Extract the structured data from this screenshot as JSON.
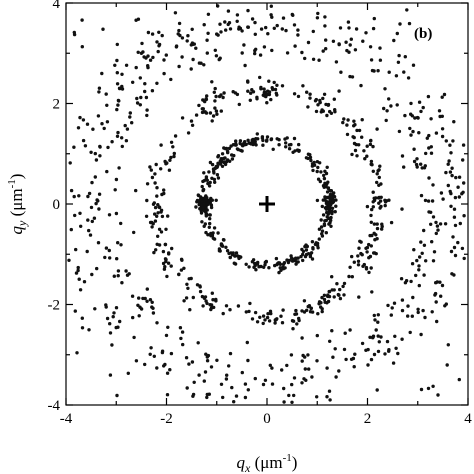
{
  "chart_data": {
    "type": "scatter",
    "title": "",
    "annotation": "(b)",
    "xlabel": {
      "symbol": "q",
      "subscript": "x",
      "unit": " (μm",
      "exp": "-1",
      "close": ")"
    },
    "ylabel": {
      "symbol": "q",
      "subscript": "y",
      "unit": " (μm",
      "exp": "-1",
      "close": ")"
    },
    "xlim": [
      -4,
      4
    ],
    "ylim": [
      -4,
      4
    ],
    "xticks": [
      -4,
      -2,
      0,
      2,
      4
    ],
    "yticks": [
      -4,
      -2,
      0,
      2,
      4
    ],
    "xtick_labels": [
      "-4",
      "-2",
      "0",
      "2",
      "4"
    ],
    "ytick_labels": [
      "-4",
      "-2",
      "0",
      "2",
      "4"
    ],
    "grid": false,
    "marker_color": "#111111",
    "center_marker": {
      "x": 0,
      "y": 0,
      "shape": "cross"
    },
    "rings": [
      {
        "name": "",
        "radius": 1.25,
        "width": 0.07,
        "points": 440,
        "bunch_angles_deg": [
          0,
          180
        ],
        "bunch_strength": 0.25
      },
      {
        "name": "",
        "radius": 2.25,
        "width": 0.12,
        "points": 380,
        "bunch_angles_deg": [
          0,
          30,
          60,
          90,
          120,
          150,
          180,
          210,
          240,
          270,
          300,
          330
        ],
        "bunch_strength": 0.4
      },
      {
        "name": "",
        "radius": 3.55,
        "width": 0.55,
        "points": 520,
        "bunch_angles_deg": [],
        "bunch_strength": 0
      }
    ],
    "scattered_points": 160
  }
}
